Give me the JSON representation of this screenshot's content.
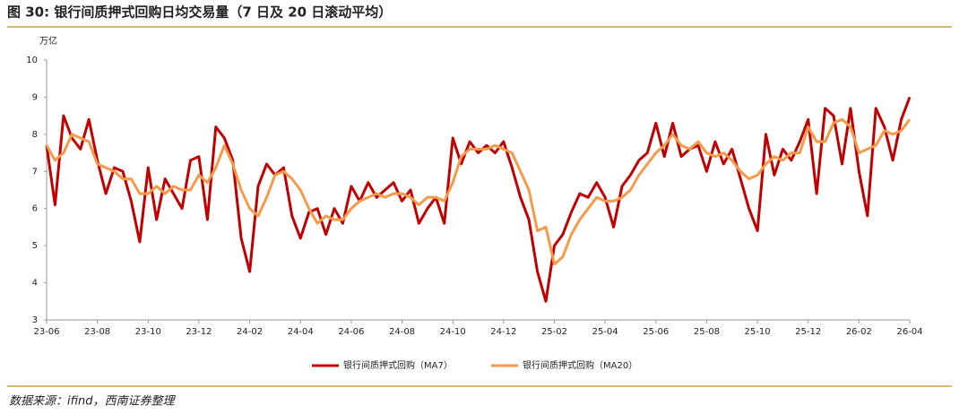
{
  "chart_data": {
    "type": "line",
    "title": "图 30:  银行间质押式回购日均交易量（7 日及 20 日滚动平均）",
    "y_label": "万亿",
    "source": "数据来源：ifind，西南证券整理",
    "categories": [
      "23-06",
      null,
      null,
      null,
      null,
      null,
      "23-08",
      null,
      null,
      null,
      null,
      null,
      "23-10",
      null,
      null,
      null,
      null,
      null,
      "23-12",
      null,
      null,
      null,
      null,
      null,
      "24-02",
      null,
      null,
      null,
      null,
      null,
      "24-04",
      null,
      null,
      null,
      null,
      null,
      "24-06",
      null,
      null,
      null,
      null,
      null,
      "24-08",
      null,
      null,
      null,
      null,
      null,
      "24-10",
      null,
      null,
      null,
      null,
      null,
      "24-12",
      null,
      null,
      null,
      null,
      null,
      "25-02",
      null,
      null,
      null,
      null,
      null,
      "25-04",
      null,
      null,
      null,
      null,
      null,
      "25-06",
      null,
      null,
      null,
      null,
      null,
      "25-08",
      null,
      null,
      null,
      null,
      null,
      "25-10",
      null,
      null,
      null,
      null,
      null,
      "25-12",
      null,
      null,
      null,
      null,
      null,
      "26-02",
      null,
      null,
      null,
      null,
      null,
      "26-04"
    ],
    "series": [
      {
        "name": "银行间质押式回购（MA7）",
        "color": "#c00000",
        "values": [
          7.7,
          6.1,
          8.5,
          7.9,
          7.6,
          8.4,
          7.3,
          6.4,
          7.1,
          7.0,
          6.2,
          5.1,
          7.1,
          5.7,
          6.8,
          6.4,
          6.0,
          7.3,
          7.4,
          5.7,
          8.2,
          7.9,
          7.3,
          5.2,
          4.3,
          6.6,
          7.2,
          6.9,
          7.1,
          5.8,
          5.2,
          5.9,
          6.0,
          5.3,
          6.0,
          5.6,
          6.6,
          6.2,
          6.7,
          6.3,
          6.5,
          6.7,
          6.2,
          6.5,
          5.6,
          6.0,
          6.3,
          5.6,
          7.9,
          7.2,
          7.8,
          7.5,
          7.7,
          7.5,
          7.8,
          7.1,
          6.3,
          5.7,
          4.3,
          3.5,
          5.0,
          5.3,
          5.9,
          6.4,
          6.3,
          6.7,
          6.3,
          5.5,
          6.6,
          6.9,
          7.3,
          7.5,
          8.3,
          7.4,
          8.3,
          7.4,
          7.6,
          7.7,
          7.0,
          7.8,
          7.2,
          7.6,
          6.8,
          6.0,
          5.4,
          8.0,
          6.9,
          7.6,
          7.3,
          7.8,
          8.4,
          6.4,
          8.7,
          8.5,
          7.2,
          8.7,
          7.0,
          5.8,
          8.7,
          8.2,
          7.3,
          8.4,
          9.0
        ]
      },
      {
        "name": "银行间质押式回购（MA20）",
        "color": "#f39b4b",
        "values": [
          7.7,
          7.3,
          7.5,
          8.0,
          7.9,
          7.8,
          7.2,
          7.1,
          7.0,
          6.8,
          6.8,
          6.4,
          6.4,
          6.6,
          6.4,
          6.6,
          6.5,
          6.5,
          6.9,
          6.7,
          7.1,
          7.7,
          7.2,
          6.5,
          6.0,
          5.8,
          6.3,
          6.9,
          7.0,
          6.8,
          6.5,
          6.0,
          5.6,
          5.8,
          5.7,
          5.7,
          6.0,
          6.2,
          6.3,
          6.4,
          6.3,
          6.4,
          6.4,
          6.3,
          6.1,
          6.3,
          6.3,
          6.2,
          6.7,
          7.4,
          7.6,
          7.6,
          7.6,
          7.7,
          7.6,
          7.5,
          7.0,
          6.5,
          5.4,
          5.5,
          4.5,
          4.7,
          5.3,
          5.7,
          6.0,
          6.3,
          6.2,
          6.2,
          6.3,
          6.5,
          6.9,
          7.2,
          7.5,
          7.7,
          8.0,
          7.7,
          7.6,
          7.8,
          7.5,
          7.4,
          7.5,
          7.3,
          7.0,
          6.8,
          6.9,
          7.2,
          7.4,
          7.3,
          7.5,
          7.5,
          8.2,
          7.8,
          7.8,
          8.3,
          8.4,
          8.2,
          7.5,
          7.6,
          7.7,
          8.1,
          8.0,
          8.1,
          8.4
        ]
      }
    ],
    "ylim": [
      3,
      10
    ],
    "yticks": [
      3,
      4,
      5,
      6,
      7,
      8,
      9,
      10
    ],
    "grid": false,
    "legend": "bottom"
  }
}
